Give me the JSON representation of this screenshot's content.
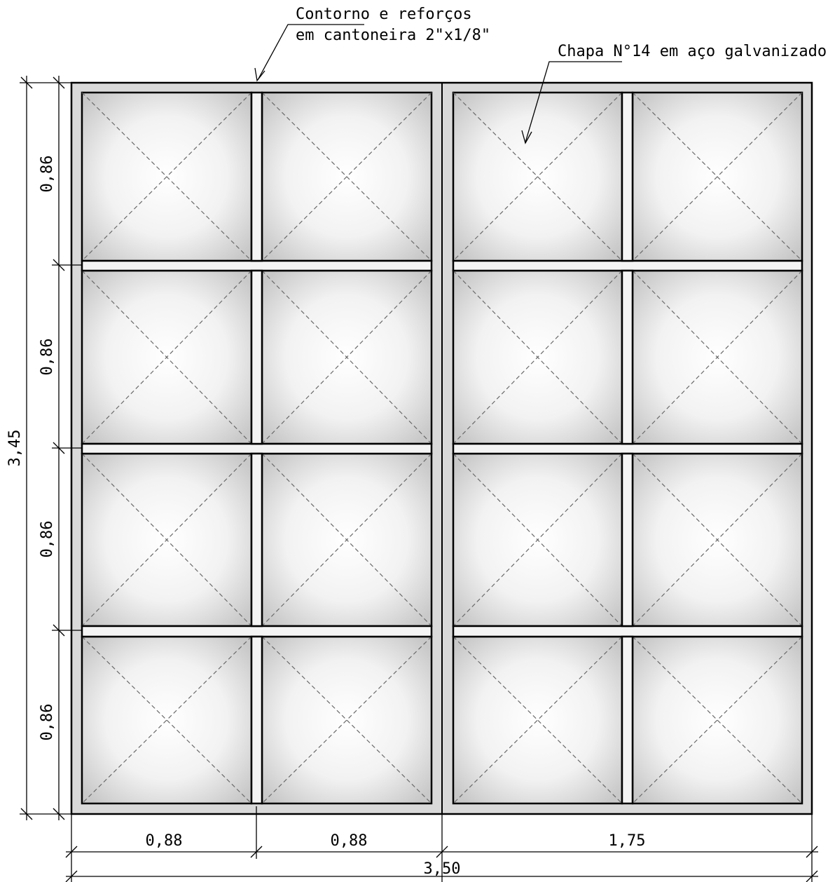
{
  "annotations": {
    "frame_label_line1": "Contorno e reforços",
    "frame_label_line2": "em cantoneira 2\"x1/8\"",
    "sheet_label": "Chapa N°14 em aço galvanizado"
  },
  "dimensions": {
    "row_heights": [
      "0,86",
      "0,86",
      "0,86",
      "0,86"
    ],
    "total_height": "3,45",
    "col_widths": [
      "0,88",
      "0,88",
      "1,75"
    ],
    "total_width": "3,50"
  },
  "grid": {
    "rows": 4,
    "columns": 4,
    "leaves": 2
  },
  "colors": {
    "frame_fill": "#d9d9d9",
    "bar_fill": "#f4f4f4",
    "stroke": "#000000",
    "panel_center": "#ffffff",
    "panel_edge": "#c8c8c8"
  }
}
